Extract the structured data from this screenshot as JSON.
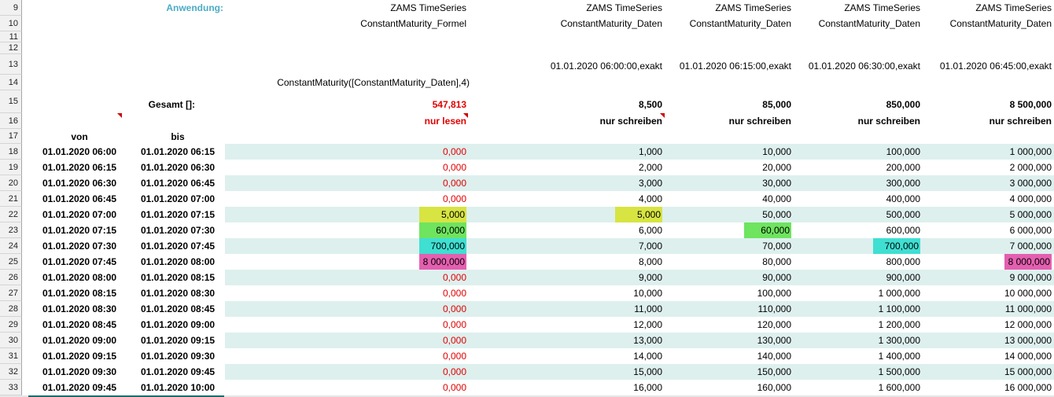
{
  "labels": {
    "anwendung": "Anwendung:",
    "gesamt": "Gesamt []:",
    "von": "von",
    "bis": "bis"
  },
  "columns": [
    {
      "app": "ZAMS TimeSeries",
      "dataset": "ConstantMaturity_Formel",
      "timestamp": "",
      "formula": "ConstantMaturity([ConstantMaturity_Daten],4)",
      "total": "547,813",
      "access": "nur lesen"
    },
    {
      "app": "ZAMS TimeSeries",
      "dataset": "ConstantMaturity_Daten",
      "timestamp": "01.01.2020 06:00:00,exakt",
      "formula": "",
      "total": "8,500",
      "access": "nur schreiben"
    },
    {
      "app": "ZAMS TimeSeries",
      "dataset": "ConstantMaturity_Daten",
      "timestamp": "01.01.2020 06:15:00,exakt",
      "formula": "",
      "total": "85,000",
      "access": "nur schreiben"
    },
    {
      "app": "ZAMS TimeSeries",
      "dataset": "ConstantMaturity_Daten",
      "timestamp": "01.01.2020 06:30:00,exakt",
      "formula": "",
      "total": "850,000",
      "access": "nur schreiben"
    },
    {
      "app": "ZAMS TimeSeries",
      "dataset": "ConstantMaturity_Daten",
      "timestamp": "01.01.2020 06:45:00,exakt",
      "formula": "",
      "total": "8 500,000",
      "access": "nur schreiben"
    }
  ],
  "row_numbers_header": [
    "9",
    "10",
    "11",
    "12",
    "13",
    "14",
    "15",
    "16",
    "17"
  ],
  "rows": [
    {
      "num": "18",
      "von": "01.01.2020 06:00",
      "bis": "01.01.2020 06:15",
      "values": [
        "0,000",
        "1,000",
        "10,000",
        "100,000",
        "1 000,000"
      ],
      "highlights": [
        null,
        null,
        null,
        null,
        null
      ]
    },
    {
      "num": "19",
      "von": "01.01.2020 06:15",
      "bis": "01.01.2020 06:30",
      "values": [
        "0,000",
        "2,000",
        "20,000",
        "200,000",
        "2 000,000"
      ],
      "highlights": [
        null,
        null,
        null,
        null,
        null
      ]
    },
    {
      "num": "20",
      "von": "01.01.2020 06:30",
      "bis": "01.01.2020 06:45",
      "values": [
        "0,000",
        "3,000",
        "30,000",
        "300,000",
        "3 000,000"
      ],
      "highlights": [
        null,
        null,
        null,
        null,
        null
      ]
    },
    {
      "num": "21",
      "von": "01.01.2020 06:45",
      "bis": "01.01.2020 07:00",
      "values": [
        "0,000",
        "4,000",
        "40,000",
        "400,000",
        "4 000,000"
      ],
      "highlights": [
        null,
        null,
        null,
        null,
        null
      ]
    },
    {
      "num": "22",
      "von": "01.01.2020 07:00",
      "bis": "01.01.2020 07:15",
      "values": [
        "5,000",
        "5,000",
        "50,000",
        "500,000",
        "5 000,000"
      ],
      "highlights": [
        "yellow",
        "yellow",
        null,
        null,
        null
      ]
    },
    {
      "num": "23",
      "von": "01.01.2020 07:15",
      "bis": "01.01.2020 07:30",
      "values": [
        "60,000",
        "6,000",
        "60,000",
        "600,000",
        "6 000,000"
      ],
      "highlights": [
        "green",
        null,
        "green",
        null,
        null
      ]
    },
    {
      "num": "24",
      "von": "01.01.2020 07:30",
      "bis": "01.01.2020 07:45",
      "values": [
        "700,000",
        "7,000",
        "70,000",
        "700,000",
        "7 000,000"
      ],
      "highlights": [
        "cyan",
        null,
        null,
        "cyan",
        null
      ]
    },
    {
      "num": "25",
      "von": "01.01.2020 07:45",
      "bis": "01.01.2020 08:00",
      "values": [
        "8 000,000",
        "8,000",
        "80,000",
        "800,000",
        "8 000,000"
      ],
      "highlights": [
        "magenta",
        null,
        null,
        null,
        "magenta"
      ]
    },
    {
      "num": "26",
      "von": "01.01.2020 08:00",
      "bis": "01.01.2020 08:15",
      "values": [
        "0,000",
        "9,000",
        "90,000",
        "900,000",
        "9 000,000"
      ],
      "highlights": [
        null,
        null,
        null,
        null,
        null
      ]
    },
    {
      "num": "27",
      "von": "01.01.2020 08:15",
      "bis": "01.01.2020 08:30",
      "values": [
        "0,000",
        "10,000",
        "100,000",
        "1 000,000",
        "10 000,000"
      ],
      "highlights": [
        null,
        null,
        null,
        null,
        null
      ]
    },
    {
      "num": "28",
      "von": "01.01.2020 08:30",
      "bis": "01.01.2020 08:45",
      "values": [
        "0,000",
        "11,000",
        "110,000",
        "1 100,000",
        "11 000,000"
      ],
      "highlights": [
        null,
        null,
        null,
        null,
        null
      ]
    },
    {
      "num": "29",
      "von": "01.01.2020 08:45",
      "bis": "01.01.2020 09:00",
      "values": [
        "0,000",
        "12,000",
        "120,000",
        "1 200,000",
        "12 000,000"
      ],
      "highlights": [
        null,
        null,
        null,
        null,
        null
      ]
    },
    {
      "num": "30",
      "von": "01.01.2020 09:00",
      "bis": "01.01.2020 09:15",
      "values": [
        "0,000",
        "13,000",
        "130,000",
        "1 300,000",
        "13 000,000"
      ],
      "highlights": [
        null,
        null,
        null,
        null,
        null
      ]
    },
    {
      "num": "31",
      "von": "01.01.2020 09:15",
      "bis": "01.01.2020 09:30",
      "values": [
        "0,000",
        "14,000",
        "140,000",
        "1 400,000",
        "14 000,000"
      ],
      "highlights": [
        null,
        null,
        null,
        null,
        null
      ]
    },
    {
      "num": "32",
      "von": "01.01.2020 09:30",
      "bis": "01.01.2020 09:45",
      "values": [
        "0,000",
        "15,000",
        "150,000",
        "1 500,000",
        "15 000,000"
      ],
      "highlights": [
        null,
        null,
        null,
        null,
        null
      ]
    },
    {
      "num": "33",
      "von": "01.01.2020 09:45",
      "bis": "01.01.2020 10:00",
      "values": [
        "0,000",
        "16,000",
        "160,000",
        "1 600,000",
        "16 000,000"
      ],
      "highlights": [
        null,
        null,
        null,
        null,
        null
      ]
    }
  ],
  "colors": {
    "accent_teal": "#4BACC6",
    "value_red": "#E10000",
    "row_band": "#DDF0EE",
    "highlight_yellow": "#D7E442",
    "highlight_green": "#6EE45F",
    "highlight_cyan": "#3FDFD2",
    "highlight_magenta": "#E45FB0"
  }
}
